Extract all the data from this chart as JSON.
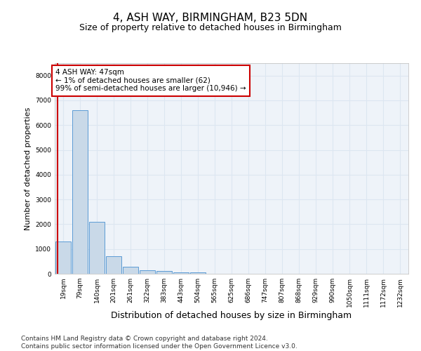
{
  "title": "4, ASH WAY, BIRMINGHAM, B23 5DN",
  "subtitle": "Size of property relative to detached houses in Birmingham",
  "xlabel": "Distribution of detached houses by size in Birmingham",
  "ylabel": "Number of detached properties",
  "bin_labels": [
    "19sqm",
    "79sqm",
    "140sqm",
    "201sqm",
    "261sqm",
    "322sqm",
    "383sqm",
    "443sqm",
    "504sqm",
    "565sqm",
    "625sqm",
    "686sqm",
    "747sqm",
    "807sqm",
    "868sqm",
    "929sqm",
    "990sqm",
    "1050sqm",
    "1111sqm",
    "1172sqm",
    "1232sqm"
  ],
  "bar_heights": [
    1300,
    6600,
    2100,
    700,
    280,
    150,
    100,
    50,
    50,
    0,
    0,
    0,
    0,
    0,
    0,
    0,
    0,
    0,
    0,
    0,
    0
  ],
  "bar_color": "#c9d9e8",
  "bar_edge_color": "#5b9bd5",
  "ylim": [
    0,
    8500
  ],
  "yticks": [
    0,
    1000,
    2000,
    3000,
    4000,
    5000,
    6000,
    7000,
    8000
  ],
  "annotation_text": "4 ASH WAY: 47sqm\n← 1% of detached houses are smaller (62)\n99% of semi-detached houses are larger (10,946) →",
  "annotation_box_color": "#ffffff",
  "annotation_box_edge_color": "#cc0000",
  "vline_color": "#cc0000",
  "grid_color": "#dce6f1",
  "background_color": "#eef3f9",
  "footer_text": "Contains HM Land Registry data © Crown copyright and database right 2024.\nContains public sector information licensed under the Open Government Licence v3.0.",
  "title_fontsize": 11,
  "subtitle_fontsize": 9,
  "xlabel_fontsize": 9,
  "ylabel_fontsize": 8,
  "tick_fontsize": 6.5,
  "annotation_fontsize": 7.5,
  "footer_fontsize": 6.5
}
